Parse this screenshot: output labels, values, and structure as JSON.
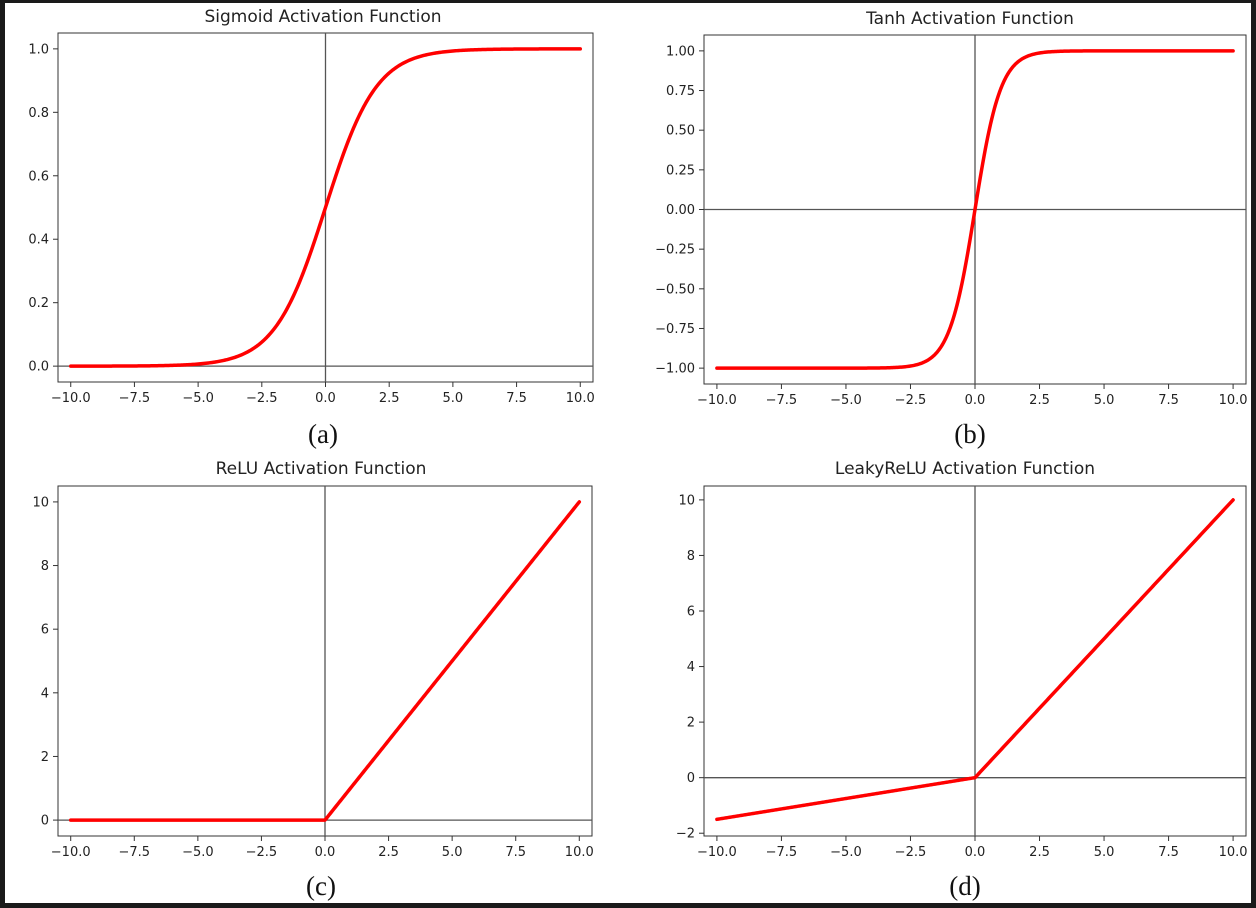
{
  "colors": {
    "curve": "#ff0000",
    "axis_line": "#555555",
    "background": "#ffffff"
  },
  "chart_data": [
    {
      "type": "line",
      "title": "Sigmoid Activation Function",
      "caption": "(a)",
      "function": "sigmoid",
      "xlim": [
        -10.5,
        10.5
      ],
      "ylim": [
        -0.05,
        1.05
      ],
      "xticks": [
        -10.0,
        -7.5,
        -5.0,
        -2.5,
        0.0,
        2.5,
        5.0,
        7.5,
        10.0
      ],
      "xtick_labels": [
        "−10.0",
        "−7.5",
        "−5.0",
        "−2.5",
        "0.0",
        "2.5",
        "5.0",
        "7.5",
        "10.0"
      ],
      "yticks": [
        0.0,
        0.2,
        0.4,
        0.6,
        0.8,
        1.0
      ],
      "ytick_labels": [
        "0.0",
        "0.2",
        "0.4",
        "0.6",
        "0.8",
        "1.0"
      ],
      "x": [
        -10,
        -7.5,
        -5,
        -2.5,
        -1,
        0,
        1,
        2.5,
        5,
        7.5,
        10
      ],
      "y": [
        0.0,
        0.001,
        0.007,
        0.076,
        0.269,
        0.5,
        0.731,
        0.924,
        0.993,
        0.999,
        1.0
      ]
    },
    {
      "type": "line",
      "title": "Tanh Activation Function",
      "caption": "(b)",
      "function": "tanh",
      "xlim": [
        -10.5,
        10.5
      ],
      "ylim": [
        -1.1,
        1.1
      ],
      "xticks": [
        -10.0,
        -7.5,
        -5.0,
        -2.5,
        0.0,
        2.5,
        5.0,
        7.5,
        10.0
      ],
      "xtick_labels": [
        "−10.0",
        "−7.5",
        "−5.0",
        "−2.5",
        "0.0",
        "2.5",
        "5.0",
        "7.5",
        "10.0"
      ],
      "yticks": [
        -1.0,
        -0.75,
        -0.5,
        -0.25,
        0.0,
        0.25,
        0.5,
        0.75,
        1.0
      ],
      "ytick_labels": [
        "−1.00",
        "−0.75",
        "−0.50",
        "−0.25",
        "0.00",
        "0.25",
        "0.50",
        "0.75",
        "1.00"
      ],
      "x": [
        -10,
        -5,
        -2.5,
        -1,
        -0.5,
        0,
        0.5,
        1,
        2.5,
        5,
        10
      ],
      "y": [
        -1.0,
        -1.0,
        -0.987,
        -0.762,
        -0.462,
        0.0,
        0.462,
        0.762,
        0.987,
        1.0,
        1.0
      ]
    },
    {
      "type": "line",
      "title": "ReLU Activation Function",
      "caption": "(c)",
      "function": "relu",
      "xlim": [
        -10.5,
        10.5
      ],
      "ylim": [
        -0.5,
        10.5
      ],
      "xticks": [
        -10.0,
        -7.5,
        -5.0,
        -2.5,
        0.0,
        2.5,
        5.0,
        7.5,
        10.0
      ],
      "xtick_labels": [
        "−10.0",
        "−7.5",
        "−5.0",
        "−2.5",
        "0.0",
        "2.5",
        "5.0",
        "7.5",
        "10.0"
      ],
      "yticks": [
        0,
        2,
        4,
        6,
        8,
        10
      ],
      "ytick_labels": [
        "0",
        "2",
        "4",
        "6",
        "8",
        "10"
      ],
      "x": [
        -10,
        0,
        10
      ],
      "y": [
        0,
        0,
        10
      ]
    },
    {
      "type": "line",
      "title": "LeakyReLU Activation Function",
      "caption": "(d)",
      "function": "leaky_relu",
      "xlim": [
        -10.5,
        10.5
      ],
      "ylim": [
        -2.1,
        10.5
      ],
      "xticks": [
        -10.0,
        -7.5,
        -5.0,
        -2.5,
        0.0,
        2.5,
        5.0,
        7.5,
        10.0
      ],
      "xtick_labels": [
        "−10.0",
        "−7.5",
        "−5.0",
        "−2.5",
        "0.0",
        "2.5",
        "5.0",
        "7.5",
        "10.0"
      ],
      "yticks": [
        -2,
        0,
        2,
        4,
        6,
        8,
        10
      ],
      "ytick_labels": [
        "−2",
        "0",
        "2",
        "4",
        "6",
        "8",
        "10"
      ],
      "x": [
        -10,
        0,
        10
      ],
      "y": [
        -1.5,
        0,
        10
      ]
    }
  ]
}
